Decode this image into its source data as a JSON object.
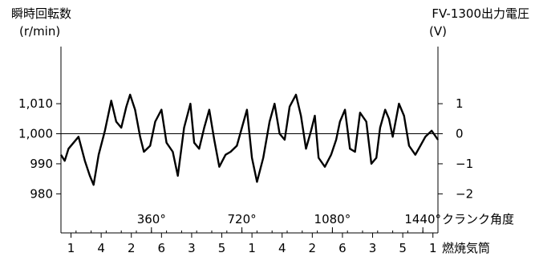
{
  "chart_data": {
    "type": "line",
    "left_axis": {
      "title": "瞬時回転数",
      "unit": "(r/min)",
      "ylim": [
        967,
        1029
      ],
      "ticks": [
        {
          "value": 1010,
          "label": "1,010"
        },
        {
          "value": 1000,
          "label": "1,000"
        },
        {
          "value": 990,
          "label": "990"
        },
        {
          "value": 980,
          "label": "980"
        }
      ]
    },
    "right_axis": {
      "title": "FV-1300出力電圧",
      "unit": "(V)",
      "ticks": [
        {
          "value": 1,
          "label": "1"
        },
        {
          "value": 0,
          "label": "0"
        },
        {
          "value": -1,
          "label": "−1"
        },
        {
          "value": -2,
          "label": "−2"
        }
      ]
    },
    "crank_axis": {
      "label": "クランク角度",
      "xlim": [
        0,
        1500
      ],
      "major_ticks": [
        {
          "value": 360,
          "label": "360°"
        },
        {
          "value": 720,
          "label": "720°"
        },
        {
          "value": 1080,
          "label": "1080°"
        },
        {
          "value": 1440,
          "label": "1440°"
        }
      ]
    },
    "cylinder_axis": {
      "label": "燃焼気筒",
      "cylinders": [
        "1",
        "4",
        "2",
        "6",
        "3",
        "5",
        "1",
        "4",
        "2",
        "6",
        "3",
        "5",
        "1"
      ],
      "positions": [
        40,
        160,
        280,
        400,
        520,
        640,
        760,
        880,
        1000,
        1120,
        1240,
        1360,
        1480
      ]
    },
    "reference_line_value": 1000,
    "series": [
      {
        "x": [
          0,
          15,
          30,
          50,
          70,
          95,
          115,
          130,
          150,
          175,
          200,
          220,
          240,
          260,
          275,
          295,
          315,
          330,
          355,
          375,
          400,
          420,
          445,
          465,
          490,
          515,
          530,
          550,
          570,
          590,
          610,
          630,
          655,
          675,
          700,
          720,
          740,
          760,
          780,
          805,
          830,
          850,
          870,
          890,
          910,
          935,
          955,
          975,
          995,
          1010,
          1025,
          1050,
          1075,
          1095,
          1110,
          1130,
          1150,
          1170,
          1190,
          1215,
          1235,
          1255,
          1270,
          1290,
          1305,
          1320,
          1345,
          1365,
          1385,
          1410,
          1430,
          1450,
          1475,
          1500
        ],
        "values": [
          993,
          991,
          995,
          997,
          999,
          991,
          986,
          983,
          993,
          1001,
          1011,
          1004,
          1002,
          1009,
          1013,
          1008,
          999,
          994,
          996,
          1004,
          1008,
          997,
          994,
          986,
          1002,
          1010,
          997,
          995,
          1002,
          1008,
          998,
          989,
          993,
          994,
          996,
          1002,
          1008,
          992,
          984,
          992,
          1004,
          1010,
          1000,
          998,
          1009,
          1013,
          1006,
          995,
          1001,
          1006,
          992,
          989,
          993,
          998,
          1004,
          1008,
          995,
          994,
          1007,
          1004,
          990,
          992,
          1002,
          1008,
          1005,
          999,
          1010,
          1006,
          996,
          993,
          996,
          999,
          1001,
          998
        ]
      }
    ]
  }
}
